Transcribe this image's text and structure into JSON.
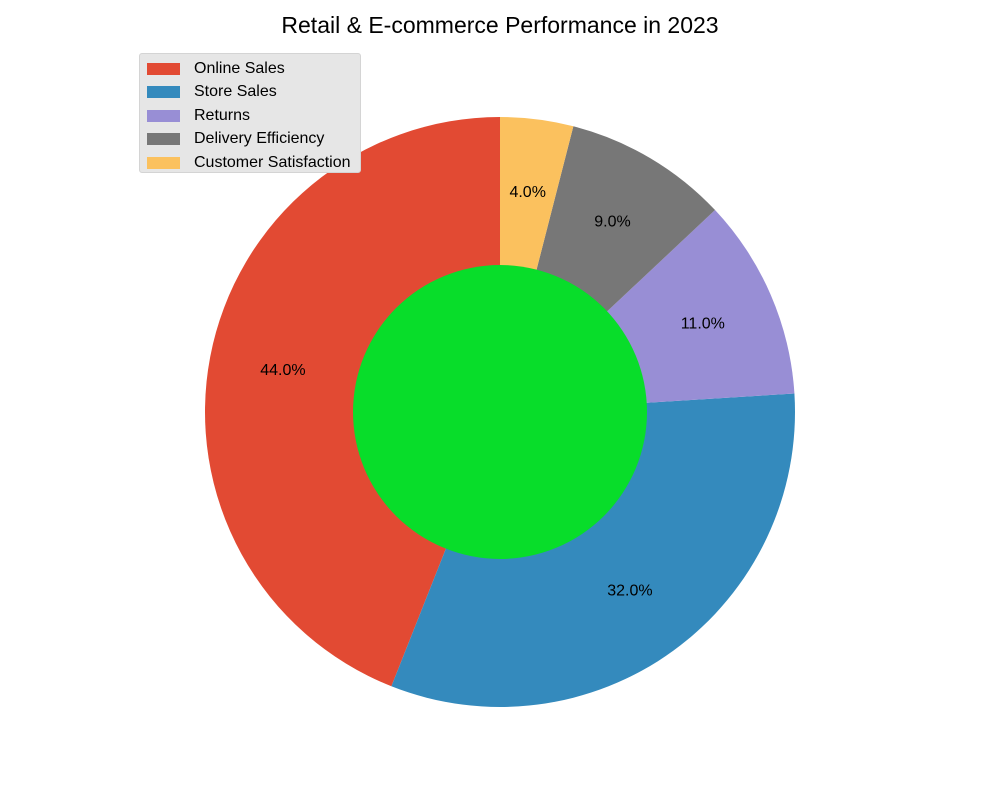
{
  "chart_data": {
    "type": "pie",
    "title": "Retail & E-commerce Performance in 2023",
    "categories": [
      "Online Sales",
      "Store Sales",
      "Returns",
      "Delivery Efficiency",
      "Customer Satisfaction"
    ],
    "values": [
      44,
      32,
      11,
      9,
      4
    ],
    "labels": [
      "44.0%",
      "32.0%",
      "11.0%",
      "9.0%",
      "4.0%"
    ],
    "colors": [
      "#e24a33",
      "#348abd",
      "#988ed5",
      "#777777",
      "#fbc15e"
    ],
    "center_color": "#08dd2a",
    "legend_position": "upper-left",
    "start_angle_deg": 90,
    "direction": "counterclockwise"
  }
}
